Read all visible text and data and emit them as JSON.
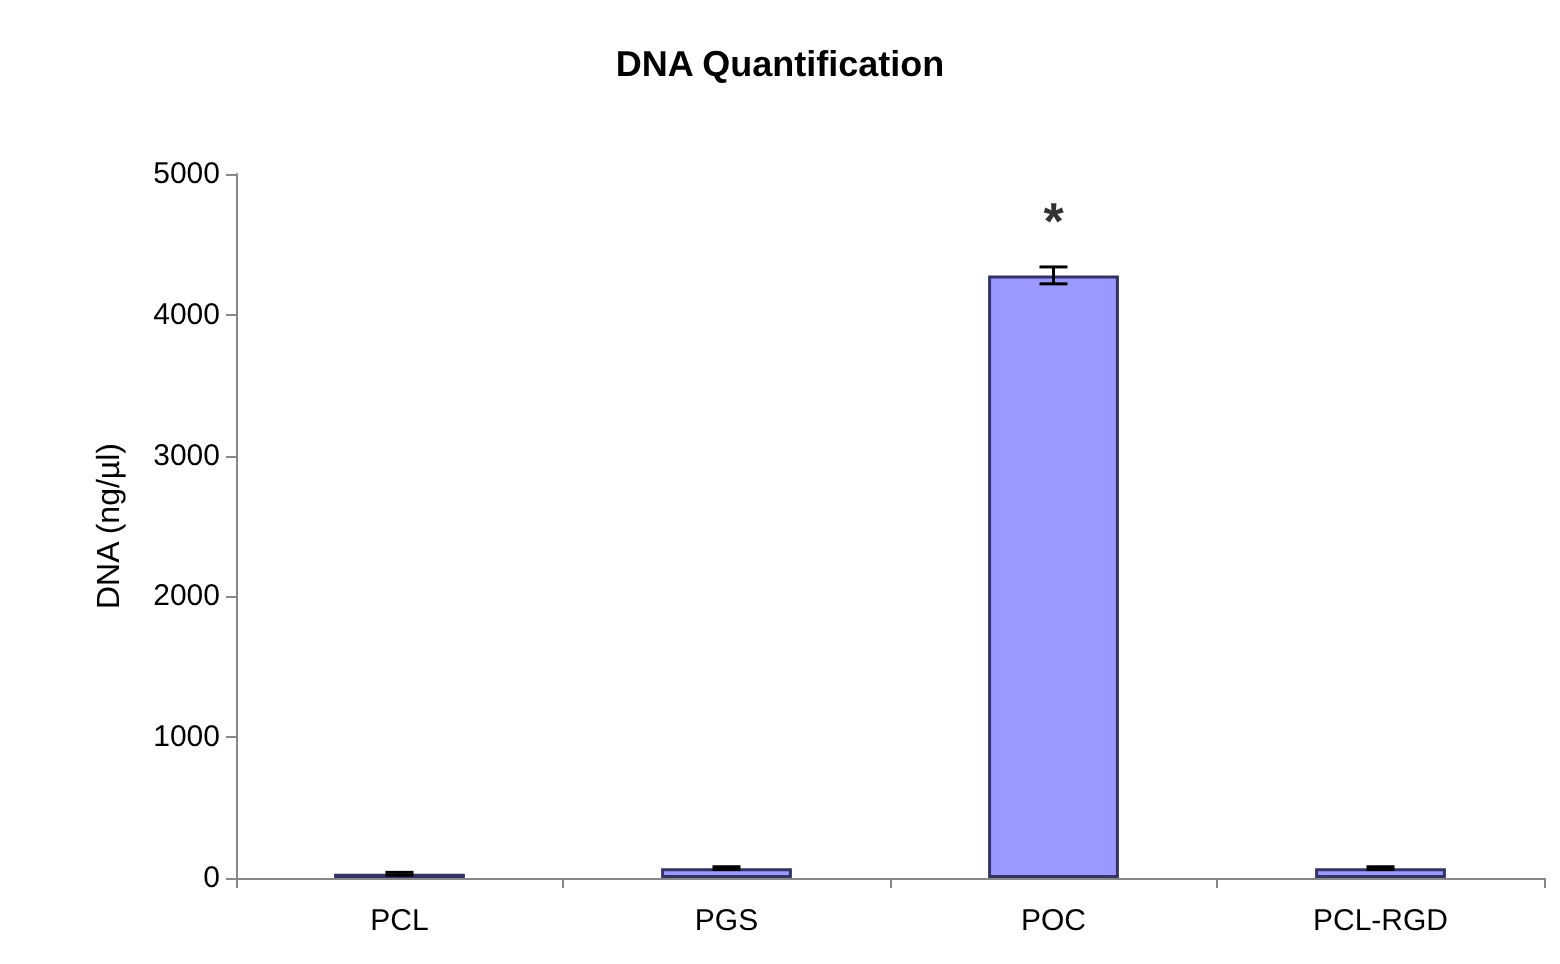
{
  "chart_data": {
    "type": "bar",
    "title": "DNA Quantification",
    "ylabel": "DNA (ng/µl)",
    "categories": [
      "PCL",
      "PGS",
      "POC",
      "PCL-RGD"
    ],
    "values": [
      30,
      70,
      4280,
      70
    ],
    "errors": [
      10,
      10,
      60,
      10
    ],
    "color": "#9999ff",
    "ylim": [
      0,
      5000
    ],
    "yticks": [
      0,
      1000,
      2000,
      3000,
      4000,
      5000
    ],
    "grid": false,
    "annotations": [
      {
        "text": "*",
        "x": "POC",
        "y": 4280
      }
    ]
  }
}
